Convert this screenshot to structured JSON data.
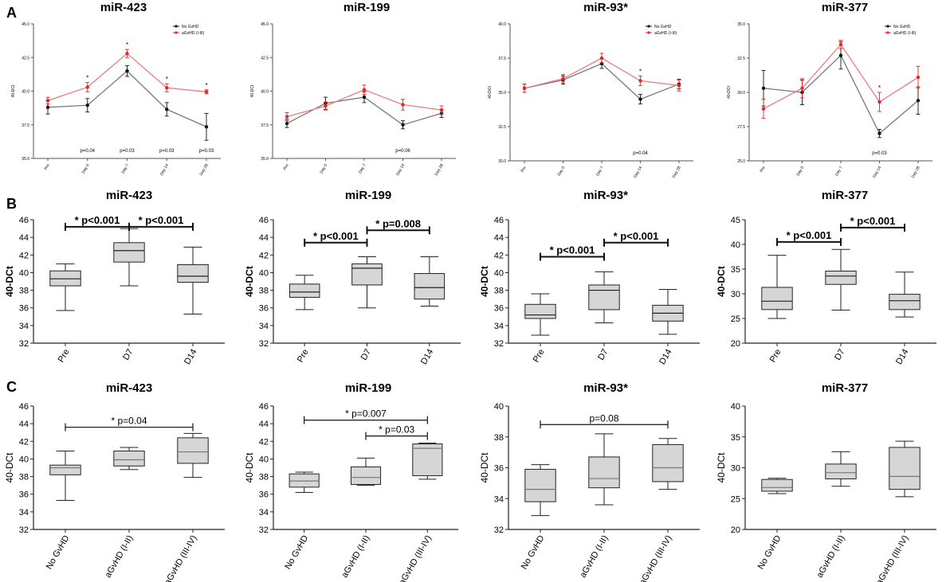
{
  "panel_labels": [
    "A",
    "B",
    "C"
  ],
  "chart_data": [
    {
      "type": "line",
      "panel": "A",
      "title": "miR-423",
      "ylabel": "40-DCt",
      "ylim": [
        35.0,
        45.0
      ],
      "yticks": [
        "35.0",
        "37.5",
        "40.0",
        "42.5",
        "45.0"
      ],
      "categories": [
        "Pre",
        "Day 0",
        "Day 7",
        "Day 14",
        "Day 28"
      ],
      "legend": [
        "No GvHD",
        "aGvHD (I-III)"
      ],
      "series": [
        {
          "name": "No GvHD",
          "color": "#111111",
          "values": [
            38.8,
            38.95,
            41.5,
            38.65,
            37.35
          ],
          "err": [
            0.5,
            0.5,
            0.4,
            0.5,
            1.0
          ]
        },
        {
          "name": "aGvHD (I-III)",
          "color": "#e32626",
          "values": [
            39.3,
            40.3,
            42.8,
            40.25,
            39.95
          ],
          "err": [
            0.25,
            0.35,
            0.3,
            0.3,
            0.15
          ]
        }
      ],
      "stars": [
        "",
        "*",
        "*",
        "*",
        "*"
      ],
      "pvalues": [
        "",
        "p=0.04",
        "p=0.03",
        "p=0.03",
        "p=0.03"
      ]
    },
    {
      "type": "line",
      "panel": "A",
      "title": "miR-199",
      "ylabel": "40-DCt",
      "ylim": [
        35.0,
        45.0
      ],
      "yticks": [
        "35.0",
        "37.5",
        "40.0",
        "42.5",
        "45.0"
      ],
      "categories": [
        "Pre",
        "Day 0",
        "Day 7",
        "Day 14",
        "Day 28"
      ],
      "series": [
        {
          "name": "No GvHD",
          "color": "#111111",
          "values": [
            37.6,
            39.1,
            39.55,
            37.5,
            38.35
          ],
          "err": [
            0.3,
            0.45,
            0.4,
            0.3,
            0.3
          ]
        },
        {
          "name": "aGvHD (I-III)",
          "color": "#e32626",
          "values": [
            38.1,
            38.9,
            40.1,
            39.0,
            38.6
          ],
          "err": [
            0.3,
            0.3,
            0.35,
            0.4,
            0.3
          ]
        }
      ],
      "stars": [
        "",
        "",
        "",
        "",
        ""
      ],
      "pvalues": [
        "",
        "",
        "",
        "p=0.06",
        ""
      ]
    },
    {
      "type": "line",
      "panel": "A",
      "title": "miR-93*",
      "ylabel": "40-DCt",
      "ylim": [
        30.0,
        40.0
      ],
      "yticks": [
        "30.0",
        "32.5",
        "35.0",
        "37.5",
        "40.0"
      ],
      "categories": [
        "Pre",
        "Day 0",
        "Day 7",
        "Day 14",
        "Day 28"
      ],
      "legend": [
        "No GvHD",
        "aGvHD (I-III)"
      ],
      "series": [
        {
          "name": "No GvHD",
          "color": "#111111",
          "values": [
            35.3,
            35.9,
            37.1,
            34.5,
            35.6
          ],
          "err": [
            0.3,
            0.3,
            0.35,
            0.35,
            0.35
          ]
        },
        {
          "name": "aGvHD (I-III)",
          "color": "#e32626",
          "values": [
            35.3,
            36.0,
            37.5,
            35.85,
            35.5
          ],
          "err": [
            0.3,
            0.3,
            0.35,
            0.35,
            0.4
          ]
        }
      ],
      "stars": [
        "",
        "",
        "",
        "*",
        ""
      ],
      "pvalues": [
        "",
        "",
        "",
        "p=0.04",
        ""
      ]
    },
    {
      "type": "line",
      "panel": "A",
      "title": "miR-377",
      "ylabel": "40-DCt",
      "ylim": [
        25.0,
        35.0
      ],
      "yticks": [
        "25.0",
        "27.5",
        "30.0",
        "32.5",
        "35.0"
      ],
      "categories": [
        "Pre",
        "Day 0",
        "Day 7",
        "Day 14",
        "Day 28"
      ],
      "legend": [
        "No GvHD",
        "aGvHD (I-III)"
      ],
      "series": [
        {
          "name": "No GvHD",
          "color": "#111111",
          "values": [
            30.3,
            30.0,
            32.7,
            27.0,
            29.4
          ],
          "err": [
            1.3,
            0.9,
            1.0,
            0.3,
            1.0
          ]
        },
        {
          "name": "aGvHD (I-III)",
          "color": "#e32626",
          "values": [
            28.8,
            30.3,
            33.5,
            29.3,
            31.1
          ],
          "err": [
            0.7,
            0.7,
            0.3,
            0.7,
            0.8
          ]
        }
      ],
      "stars": [
        "",
        "",
        "",
        "*",
        ""
      ],
      "pvalues": [
        "",
        "",
        "",
        "p=0.03",
        ""
      ]
    },
    {
      "type": "box",
      "panel": "B",
      "title": "miR-423",
      "ylabel": "40-DCt",
      "ylim": [
        32,
        46
      ],
      "yticks": [
        "32",
        "34",
        "36",
        "38",
        "40",
        "42",
        "44",
        "46"
      ],
      "categories": [
        "Pre",
        "D7",
        "D14"
      ],
      "boxes": [
        {
          "min": 35.7,
          "q1": 38.5,
          "median": 39.3,
          "q3": 40.2,
          "max": 41.0
        },
        {
          "min": 38.5,
          "q1": 41.2,
          "median": 42.5,
          "q3": 43.4,
          "max": 45.0
        },
        {
          "min": 35.3,
          "q1": 38.9,
          "median": 39.6,
          "q3": 40.9,
          "max": 42.9
        }
      ],
      "brackets": [
        {
          "from": 0,
          "to": 1,
          "y": 45.2,
          "label": "* p<0.001",
          "style": "bold"
        },
        {
          "from": 1,
          "to": 2,
          "y": 45.2,
          "label": "* p<0.001",
          "style": "bold"
        }
      ]
    },
    {
      "type": "box",
      "panel": "B",
      "title": "miR-199",
      "ylabel": "40-DCt",
      "ylim": [
        32,
        46
      ],
      "yticks": [
        "32",
        "34",
        "36",
        "38",
        "40",
        "42",
        "44",
        "46"
      ],
      "categories": [
        "Pre",
        "D7",
        "D14"
      ],
      "boxes": [
        {
          "min": 35.8,
          "q1": 37.2,
          "median": 37.8,
          "q3": 38.7,
          "max": 39.7
        },
        {
          "min": 36.0,
          "q1": 38.6,
          "median": 40.5,
          "q3": 41.0,
          "max": 41.8
        },
        {
          "min": 36.2,
          "q1": 37.0,
          "median": 38.3,
          "q3": 39.9,
          "max": 41.8
        }
      ],
      "brackets": [
        {
          "from": 0,
          "to": 1,
          "y": 43.4,
          "label": "* p<0.001",
          "style": "bold"
        },
        {
          "from": 1,
          "to": 2,
          "y": 44.8,
          "label": "* p=0.008",
          "style": "bold"
        }
      ]
    },
    {
      "type": "box",
      "panel": "B",
      "title": "miR-93*",
      "ylabel": "40-DCt",
      "ylim": [
        32,
        46
      ],
      "yticks": [
        "32",
        "34",
        "36",
        "38",
        "40",
        "42",
        "44",
        "46"
      ],
      "categories": [
        "Pre",
        "D7",
        "D14"
      ],
      "boxes": [
        {
          "min": 32.9,
          "q1": 34.8,
          "median": 35.2,
          "q3": 36.4,
          "max": 37.6
        },
        {
          "min": 34.3,
          "q1": 35.8,
          "median": 38.0,
          "q3": 38.6,
          "max": 40.1
        },
        {
          "min": 33.0,
          "q1": 34.5,
          "median": 35.4,
          "q3": 36.3,
          "max": 38.1
        }
      ],
      "brackets": [
        {
          "from": 0,
          "to": 1,
          "y": 41.8,
          "label": "* p<0.001",
          "style": "bold"
        },
        {
          "from": 1,
          "to": 2,
          "y": 43.4,
          "label": "* p<0.001",
          "style": "bold"
        }
      ]
    },
    {
      "type": "box",
      "panel": "B",
      "title": "miR-377",
      "ylabel": "40-DCt",
      "ylim": [
        20,
        45
      ],
      "yticks": [
        "20",
        "25",
        "30",
        "35",
        "40",
        "45"
      ],
      "categories": [
        "Pre",
        "D7",
        "D14"
      ],
      "boxes": [
        {
          "min": 25.0,
          "q1": 26.8,
          "median": 28.5,
          "q3": 31.3,
          "max": 37.8
        },
        {
          "min": 26.7,
          "q1": 31.9,
          "median": 33.6,
          "q3": 34.6,
          "max": 39.0
        },
        {
          "min": 25.3,
          "q1": 26.8,
          "median": 28.6,
          "q3": 29.9,
          "max": 34.4
        }
      ],
      "brackets": [
        {
          "from": 0,
          "to": 1,
          "y": 40.5,
          "label": "* p<0.001",
          "style": "bold"
        },
        {
          "from": 1,
          "to": 2,
          "y": 43.4,
          "label": "* p<0.001",
          "style": "bold"
        }
      ]
    },
    {
      "type": "box",
      "panel": "C",
      "title": "miR-423",
      "ylabel": "40-DCt",
      "ylim": [
        32,
        46
      ],
      "yticks": [
        "32",
        "34",
        "36",
        "38",
        "40",
        "42",
        "44",
        "46"
      ],
      "categories": [
        "No GvHD",
        "aGvHD (I-II)",
        "aGvHD (III-IV)"
      ],
      "boxes": [
        {
          "min": 35.3,
          "q1": 38.2,
          "median": 39.0,
          "q3": 39.3,
          "max": 40.9
        },
        {
          "min": 38.8,
          "q1": 39.2,
          "median": 39.9,
          "q3": 40.9,
          "max": 41.3
        },
        {
          "min": 37.9,
          "q1": 39.5,
          "median": 40.8,
          "q3": 42.4,
          "max": 42.9
        }
      ],
      "brackets": [
        {
          "from": 0,
          "to": 2,
          "y": 43.6,
          "label": "* p=0.04",
          "style": "normal"
        }
      ]
    },
    {
      "type": "box",
      "panel": "C",
      "title": "miR-199",
      "ylabel": "40-DCt",
      "ylim": [
        32,
        46
      ],
      "yticks": [
        "32",
        "34",
        "36",
        "38",
        "40",
        "42",
        "44",
        "46"
      ],
      "categories": [
        "No GvHD",
        "aGvHD (I-II)",
        "aGvHD (III-IV)"
      ],
      "boxes": [
        {
          "min": 36.2,
          "q1": 36.8,
          "median": 37.5,
          "q3": 38.3,
          "max": 38.5
        },
        {
          "min": 37.0,
          "q1": 37.1,
          "median": 37.9,
          "q3": 39.1,
          "max": 40.1
        },
        {
          "min": 37.7,
          "q1": 38.1,
          "median": 41.2,
          "q3": 41.7,
          "max": 41.8
        }
      ],
      "brackets": [
        {
          "from": 0,
          "to": 2,
          "y": 44.4,
          "label": "* p=0.007",
          "style": "normal"
        },
        {
          "from": 1,
          "to": 2,
          "y": 42.6,
          "label": "* p=0.03",
          "style": "normal"
        }
      ]
    },
    {
      "type": "box",
      "panel": "C",
      "title": "miR-93*",
      "ylabel": "40-DCt",
      "ylim": [
        32,
        40
      ],
      "yticks": [
        "32",
        "34",
        "36",
        "38",
        "40"
      ],
      "categories": [
        "No GvHD",
        "aGvHD (I-II)",
        "aGvHD (III-IV)"
      ],
      "boxes": [
        {
          "min": 32.9,
          "q1": 33.8,
          "median": 34.6,
          "q3": 35.9,
          "max": 36.2
        },
        {
          "min": 33.6,
          "q1": 34.7,
          "median": 35.3,
          "q3": 36.7,
          "max": 38.2
        },
        {
          "min": 34.6,
          "q1": 35.1,
          "median": 36.0,
          "q3": 37.5,
          "max": 37.9
        }
      ],
      "brackets": [
        {
          "from": 0,
          "to": 2,
          "y": 38.8,
          "label": "p=0.08",
          "style": "normal"
        }
      ]
    },
    {
      "type": "box",
      "panel": "C",
      "title": "miR-377",
      "ylabel": "40-DCt",
      "ylim": [
        20,
        40
      ],
      "yticks": [
        "20",
        "25",
        "30",
        "35",
        "40"
      ],
      "categories": [
        "No GvHD",
        "aGvHD (I-II)",
        "aGvHD (III-IV)"
      ],
      "boxes": [
        {
          "min": 25.8,
          "q1": 26.2,
          "median": 26.8,
          "q3": 28.1,
          "max": 28.3
        },
        {
          "min": 27.0,
          "q1": 28.2,
          "median": 29.2,
          "q3": 30.6,
          "max": 32.6
        },
        {
          "min": 25.3,
          "q1": 26.5,
          "median": 28.6,
          "q3": 33.3,
          "max": 34.3
        }
      ],
      "brackets": []
    }
  ]
}
